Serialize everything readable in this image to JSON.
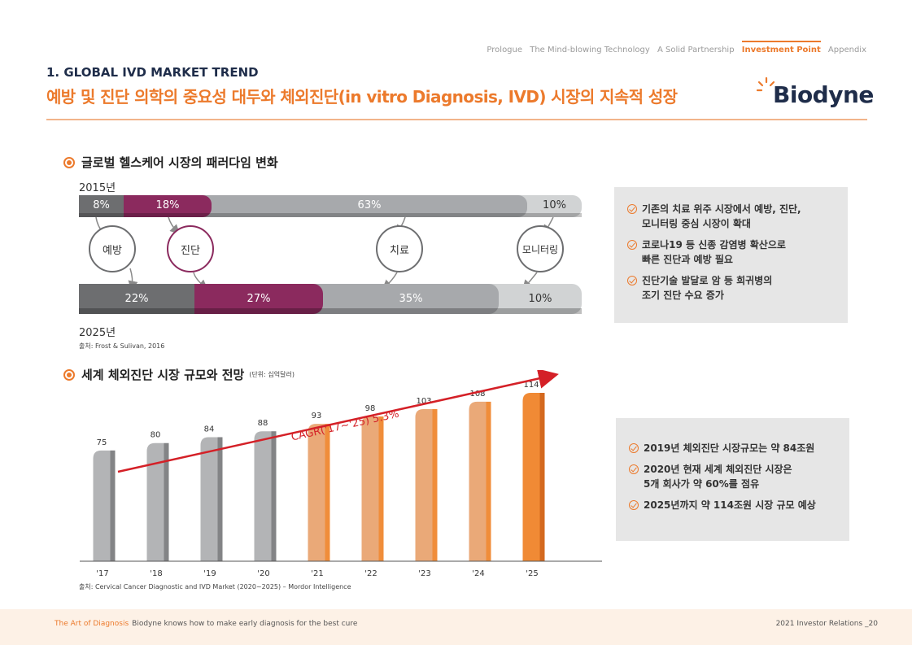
{
  "nav": {
    "items": [
      "Prologue",
      "The Mind-blowing Technology",
      "A Solid Partnership",
      "Investment Point",
      "Appendix"
    ],
    "active_index": 3
  },
  "header": {
    "section_title": "1. GLOBAL IVD MARKET TREND",
    "headline": "예방 및 진단 의학의 중요성 대두와 체외진단(in vitro Diagnosis, IVD) 시장의 지속적 성장",
    "logo": "Biodyne"
  },
  "paradigm": {
    "title": "글로벌 헬스케어 시장의 패러다임 변화",
    "year_top": "2015년",
    "year_bottom": "2025년",
    "top_bar": [
      {
        "label": "8%",
        "value": 8
      },
      {
        "label": "18%",
        "value": 18
      },
      {
        "label": "63%",
        "value": 63
      },
      {
        "label": "10%",
        "value": 10
      }
    ],
    "bottom_bar": [
      {
        "label": "22%",
        "value": 22
      },
      {
        "label": "27%",
        "value": 27
      },
      {
        "label": "35%",
        "value": 35
      },
      {
        "label": "10%",
        "value": 10
      }
    ],
    "categories": [
      "예방",
      "진단",
      "치료",
      "모니터링"
    ],
    "source": "출처: Frost & Sulivan, 2016"
  },
  "box1": {
    "items": [
      [
        "기존의 치료 위주 시장에서 예방, 진단,",
        "모니터링 중심 시장이 확대"
      ],
      [
        "코로나19 등 신종 감염병 확산으로",
        "빠른 진단과 예방 필요"
      ],
      [
        "진단기술 발달로 암 등 희귀병의",
        "조기 진단 수요 증가"
      ]
    ]
  },
  "market": {
    "title": "세계 체외진단 시장 규모와 전망",
    "unit": "(단위: 십억달러)",
    "source": "출처: Cervical Cancer Diagnostic and IVD Market (2020~2025) – Mordor Intelligence"
  },
  "chart_data": {
    "type": "bar",
    "categories": [
      "'17",
      "'18",
      "'19",
      "'20",
      "'21",
      "'22",
      "'23",
      "'24",
      "'25"
    ],
    "values": [
      75,
      80,
      84,
      88,
      93,
      98,
      103,
      108,
      114
    ],
    "annotation": "CAGR('17~'25) 5.3%",
    "ylim": [
      0,
      114
    ],
    "colors": {
      "actual": "#b3b4b6",
      "actual_side": "#838486",
      "forecast": "#eaa978",
      "forecast_side": "#f08d3a",
      "final": "#f08a35",
      "final_side": "#d4691f",
      "arrow": "#d42027"
    }
  },
  "box2": {
    "items": [
      [
        "2019년 체외진단 시장규모는 약 84조원"
      ],
      [
        "2020년 현재 세계 체외진단 시장은",
        "5개 회사가 약 60%를 점유"
      ],
      [
        "2025년까지 약 114조원 시장 규모 예상"
      ]
    ]
  },
  "footer": {
    "tagline": "The Art of Diagnosis",
    "text": "Biodyne knows how to make early diagnosis for the best cure",
    "page": "2021 Investor Relations _20"
  },
  "colors": {
    "accent": "#ec7a2c",
    "navy": "#1f2d4a",
    "maroon": "#8b2a5e",
    "gray_dark": "#6d6e70",
    "gray_mid": "#a7a9ac",
    "gray_light": "#d1d3d4"
  }
}
